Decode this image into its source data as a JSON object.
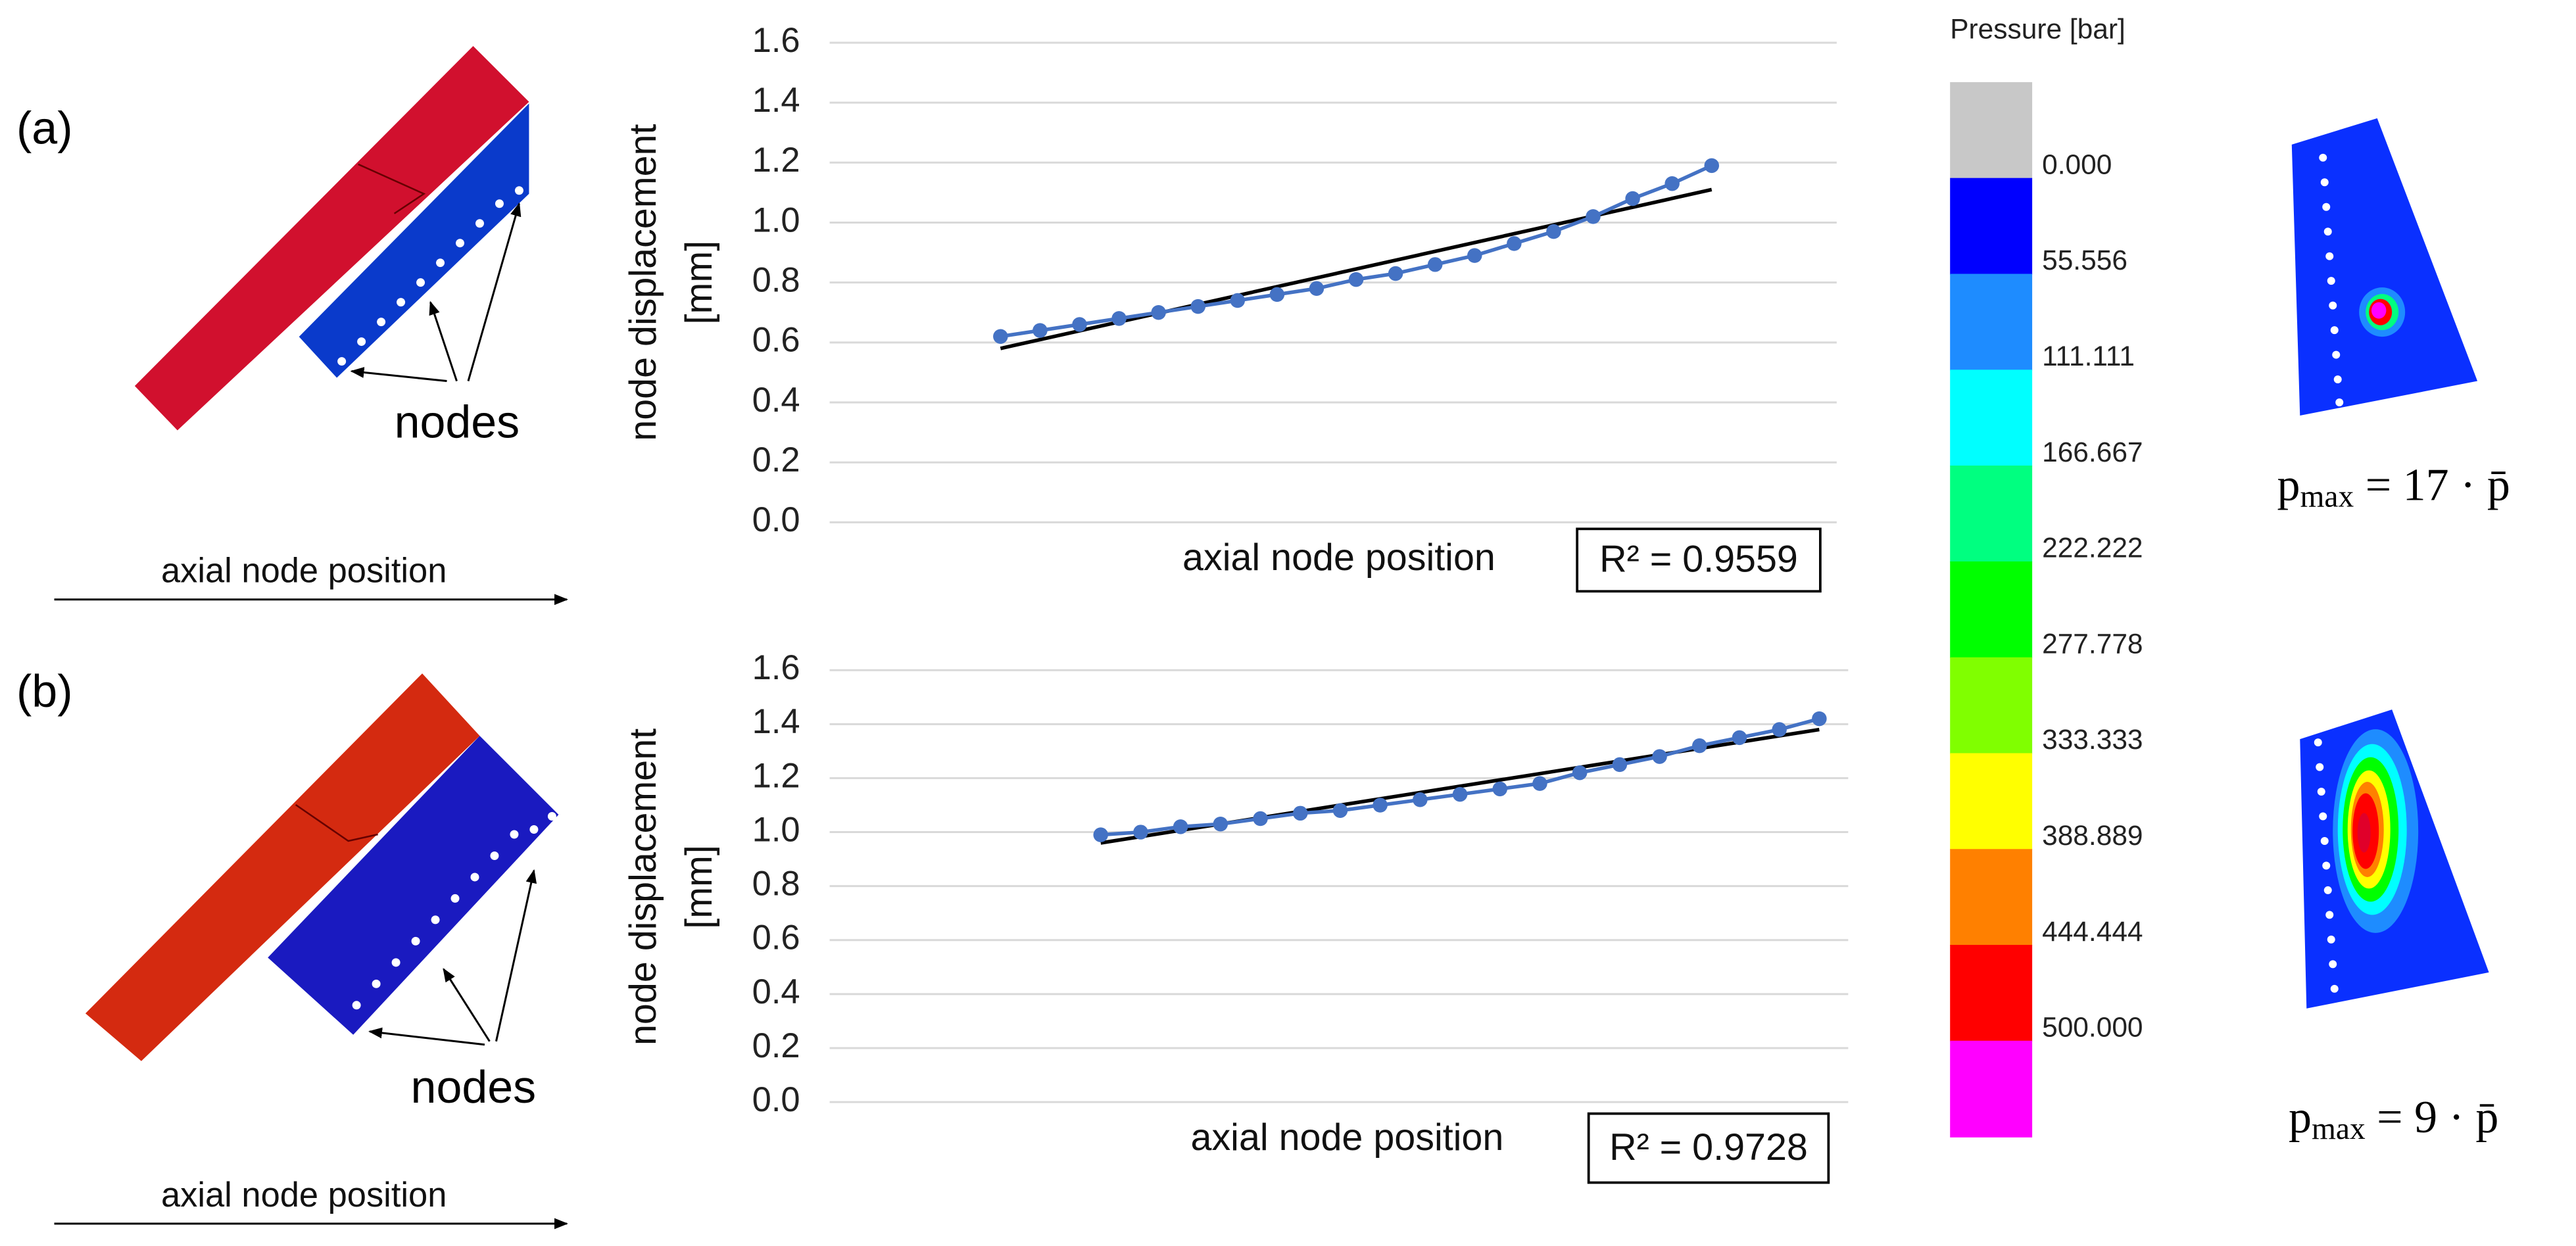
{
  "chart_data": [
    {
      "type": "line",
      "xlabel": "axial node position",
      "ylabel": [
        "node displacement",
        "[mm]"
      ],
      "categories": [
        null,
        null,
        null,
        null,
        null,
        null,
        null,
        null,
        null,
        null,
        null,
        null,
        null,
        null,
        null,
        null,
        null,
        null,
        null
      ],
      "series": [
        {
          "color": "#4472c4",
          "values": [
            0.62,
            0.64,
            0.66,
            0.68,
            0.7,
            0.72,
            0.74,
            0.76,
            0.78,
            0.81,
            0.83,
            0.86,
            0.89,
            0.93,
            0.97,
            1.02,
            1.08,
            1.13,
            1.19
          ]
        }
      ],
      "trendline": {
        "color": "#000000",
        "values": [
          0.58,
          1.11
        ]
      },
      "annotation": "R² = 0.9559",
      "ylim": [
        0,
        1.6
      ],
      "yticks": [
        {
          "value": 0,
          "label": "0.0"
        },
        0.2,
        0.4,
        0.6,
        0.8,
        {
          "value": 1,
          "label": "1.0"
        },
        1.2,
        1.4,
        1.6
      ],
      "grid": true
    },
    {
      "type": "line",
      "xlabel": "axial node position",
      "ylabel": [
        "node displacement",
        "[mm]"
      ],
      "categories": [
        null,
        null,
        null,
        null,
        null,
        null,
        null,
        null,
        null,
        null,
        null,
        null,
        null,
        null,
        null,
        null,
        null,
        null,
        null
      ],
      "series": [
        {
          "color": "#4472c4",
          "values": [
            0.99,
            1.0,
            1.02,
            1.03,
            1.05,
            1.07,
            1.08,
            1.1,
            1.12,
            1.14,
            1.16,
            1.18,
            1.22,
            1.25,
            1.28,
            1.32,
            1.35,
            1.38,
            1.42
          ]
        }
      ],
      "trendline": {
        "color": "#000000",
        "values": [
          0.96,
          1.38
        ]
      },
      "annotation": "R² = 0.9728",
      "ylim": [
        0,
        1.6
      ],
      "yticks": [
        {
          "value": 0,
          "label": "0.0"
        },
        0.2,
        0.4,
        0.6,
        0.8,
        {
          "value": 1,
          "label": "1.0"
        },
        1.2,
        1.4,
        1.6
      ],
      "grid": true
    }
  ],
  "panels": [
    {
      "label": "(a)",
      "nodes": "nodes",
      "axis": "axial node position",
      "formula": {
        "base": "p",
        "sub": "max",
        "rhs": " = 17 · p̄"
      }
    },
    {
      "label": "(b)",
      "nodes": "nodes",
      "axis": "axial node position",
      "formula": {
        "base": "p",
        "sub": "max",
        "rhs": " = 9 · p̄"
      }
    }
  ],
  "colorbar": {
    "title": "Pressure [bar]",
    "colors": [
      "#c8c8c8",
      "#0000ff",
      "#1e8cff",
      "#00ffff",
      "#00ff80",
      "#00ff00",
      "#80ff00",
      "#ffff00",
      "#ff8000",
      "#ff0000",
      "#ff00ff"
    ],
    "labels": [
      "0.000",
      "55.556",
      "111.111",
      "166.667",
      "222.222",
      "277.778",
      "333.333",
      "388.889",
      "444.444",
      "500.000"
    ]
  }
}
